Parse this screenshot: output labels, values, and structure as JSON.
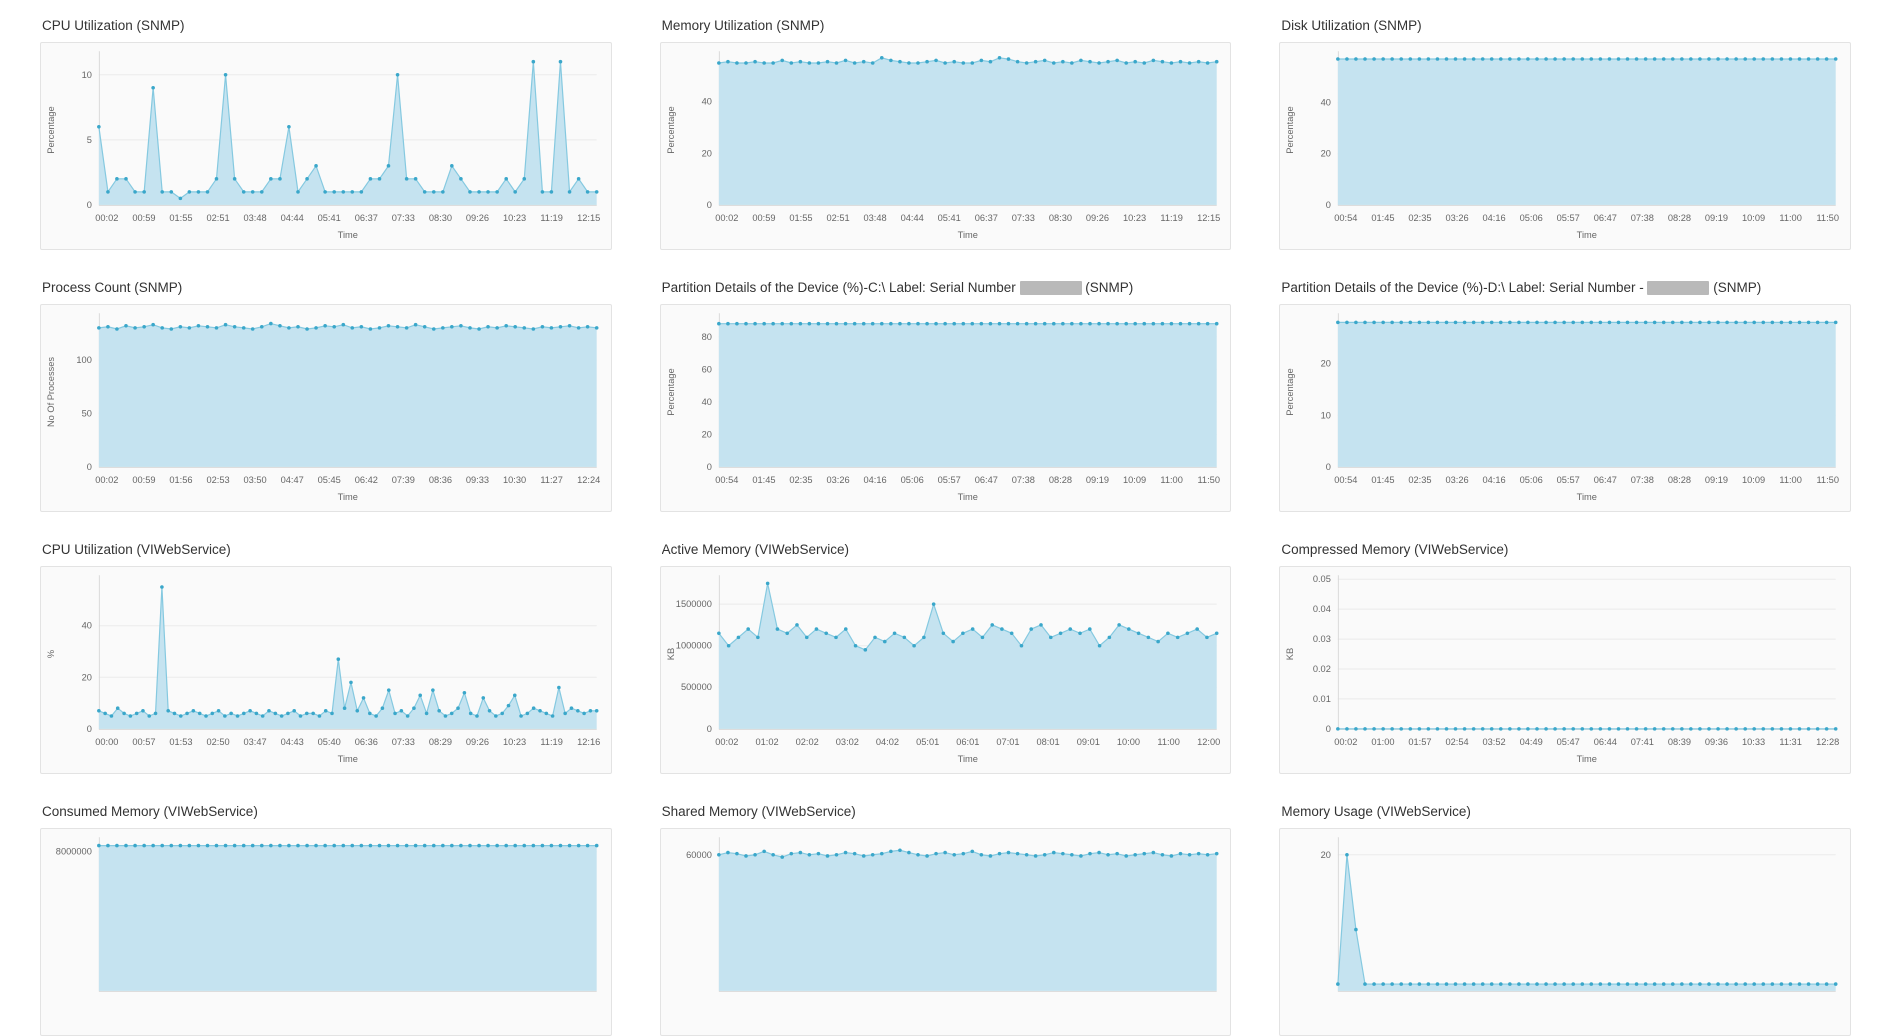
{
  "page": {
    "background": "#ffffff"
  },
  "colors": {
    "area_fill": "#c5e3f0",
    "line": "#85c9e0",
    "dot": "#3aa7ca",
    "grid": "#ebebeb",
    "axis": "#d9d9d9",
    "tick_text": "#666666",
    "title_text": "#333333",
    "panel_border": "#e3e3e3",
    "panel_bg": "#fafafa",
    "redaction": "#b9b9b9"
  },
  "chart_data": [
    {
      "type": "area",
      "title": "CPU Utilization (SNMP)",
      "ylabel": "Percentage",
      "xlabel": "Time",
      "yticks": [
        0,
        5,
        10
      ],
      "ymax": 11.5,
      "xticklabels": [
        "00:02",
        "00:59",
        "01:55",
        "02:51",
        "03:48",
        "04:44",
        "05:41",
        "06:37",
        "07:33",
        "08:30",
        "09:26",
        "10:23",
        "11:19",
        "12:15"
      ],
      "values": [
        6,
        1,
        2,
        2,
        1,
        1,
        9,
        1,
        1,
        0.5,
        1,
        1,
        1,
        2,
        10,
        2,
        1,
        1,
        1,
        2,
        2,
        6,
        1,
        2,
        3,
        1,
        1,
        1,
        1,
        1,
        2,
        2,
        3,
        10,
        2,
        2,
        1,
        1,
        1,
        3,
        2,
        1,
        1,
        1,
        1,
        2,
        1,
        2,
        11,
        1,
        1,
        11,
        1,
        2,
        1,
        1
      ]
    },
    {
      "type": "area",
      "title": "Memory Utilization (SNMP)",
      "ylabel": "Percentage",
      "xlabel": "Time",
      "yticks": [
        0,
        20,
        40
      ],
      "ymax": 58,
      "xticklabels": [
        "00:02",
        "00:59",
        "01:55",
        "02:51",
        "03:48",
        "04:44",
        "05:41",
        "06:37",
        "07:33",
        "08:30",
        "09:26",
        "10:23",
        "11:19",
        "12:15"
      ],
      "values": [
        55,
        55.5,
        55,
        55,
        55.5,
        55,
        55,
        56,
        55,
        55.5,
        55,
        55,
        55.5,
        55,
        56,
        55,
        55.5,
        55,
        57,
        56,
        55.5,
        55,
        55,
        55.5,
        56,
        55,
        55.5,
        55,
        55,
        56,
        55.5,
        57,
        56.5,
        55.5,
        55,
        55.5,
        56,
        55,
        55.5,
        55,
        56,
        55.5,
        55,
        55.5,
        56,
        55,
        55.5,
        55,
        56,
        55.5,
        55,
        55.5,
        55,
        55.5,
        55,
        55.5
      ]
    },
    {
      "type": "area",
      "title": "Disk Utilization (SNMP)",
      "ylabel": "Percentage",
      "xlabel": "Time",
      "yticks": [
        0,
        20,
        40
      ],
      "ymax": 58.5,
      "xticklabels": [
        "00:54",
        "01:45",
        "02:35",
        "03:26",
        "04:16",
        "05:06",
        "05:57",
        "06:47",
        "07:38",
        "08:28",
        "09:19",
        "10:09",
        "11:00",
        "11:50"
      ],
      "values": [
        57,
        57,
        57,
        57,
        57,
        57,
        57,
        57,
        57,
        57,
        57,
        57,
        57,
        57,
        57,
        57,
        57,
        57,
        57,
        57,
        57,
        57,
        57,
        57,
        57,
        57,
        57,
        57,
        57,
        57,
        57,
        57,
        57,
        57,
        57,
        57,
        57,
        57,
        57,
        57,
        57,
        57,
        57,
        57,
        57,
        57,
        57,
        57,
        57,
        57,
        57,
        57,
        57,
        57,
        57,
        57
      ]
    },
    {
      "type": "area",
      "title": "Process Count (SNMP)",
      "ylabel": "No Of Processes",
      "xlabel": "Time",
      "yticks": [
        0,
        50,
        100
      ],
      "ymax": 140,
      "xticklabels": [
        "00:02",
        "00:59",
        "01:56",
        "02:53",
        "03:50",
        "04:47",
        "05:45",
        "06:42",
        "07:39",
        "08:36",
        "09:33",
        "10:30",
        "11:27",
        "12:24"
      ],
      "values": [
        130,
        131,
        129,
        132,
        130,
        131,
        133,
        130,
        129,
        131,
        130,
        132,
        131,
        130,
        133,
        131,
        130,
        129,
        131,
        134,
        132,
        130,
        131,
        129,
        130,
        132,
        131,
        133,
        130,
        131,
        129,
        130,
        132,
        131,
        130,
        133,
        131,
        129,
        130,
        131,
        132,
        130,
        129,
        131,
        130,
        132,
        131,
        130,
        129,
        131,
        130,
        131,
        132,
        130,
        131,
        130
      ]
    },
    {
      "type": "area",
      "title_prefix": "Partition Details of the Device (%)-C:\\ Label: Serial Number",
      "title_redacted": true,
      "title_suffix": "(SNMP)",
      "ylabel": "Percentage",
      "xlabel": "Time",
      "yticks": [
        0,
        20,
        40,
        60,
        80
      ],
      "ymax": 92,
      "xticklabels": [
        "00:54",
        "01:45",
        "02:35",
        "03:26",
        "04:16",
        "05:06",
        "05:57",
        "06:47",
        "07:38",
        "08:28",
        "09:19",
        "10:09",
        "11:00",
        "11:50"
      ],
      "values": [
        88,
        88,
        88,
        88,
        88,
        88,
        88,
        88,
        88,
        88,
        88,
        88,
        88,
        88,
        88,
        88,
        88,
        88,
        88,
        88,
        88,
        88,
        88,
        88,
        88,
        88,
        88,
        88,
        88,
        88,
        88,
        88,
        88,
        88,
        88,
        88,
        88,
        88,
        88,
        88,
        88,
        88,
        88,
        88,
        88,
        88,
        88,
        88,
        88,
        88,
        88,
        88,
        88,
        88,
        88,
        88
      ]
    },
    {
      "type": "area",
      "title_prefix": "Partition Details of the Device (%)-D:\\ Label: Serial Number -",
      "title_redacted": true,
      "title_suffix": "(SNMP)",
      "ylabel": "Percentage",
      "xlabel": "Time",
      "yticks": [
        0,
        10,
        20
      ],
      "ymax": 29,
      "xticklabels": [
        "00:54",
        "01:45",
        "02:35",
        "03:26",
        "04:16",
        "05:06",
        "05:57",
        "06:47",
        "07:38",
        "08:28",
        "09:19",
        "10:09",
        "11:00",
        "11:50"
      ],
      "values": [
        28,
        28,
        28,
        28,
        28,
        28,
        28,
        28,
        28,
        28,
        28,
        28,
        28,
        28,
        28,
        28,
        28,
        28,
        28,
        28,
        28,
        28,
        28,
        28,
        28,
        28,
        28,
        28,
        28,
        28,
        28,
        28,
        28,
        28,
        28,
        28,
        28,
        28,
        28,
        28,
        28,
        28,
        28,
        28,
        28,
        28,
        28,
        28,
        28,
        28,
        28,
        28,
        28,
        28,
        28,
        28
      ]
    },
    {
      "type": "area",
      "title": "CPU Utilization (VIWebService)",
      "ylabel": "%",
      "xlabel": "Time",
      "yticks": [
        0,
        20,
        40
      ],
      "ymax": 58,
      "xticklabels": [
        "00:00",
        "00:57",
        "01:53",
        "02:50",
        "03:47",
        "04:43",
        "05:40",
        "06:36",
        "07:33",
        "08:29",
        "09:26",
        "10:23",
        "11:19",
        "12:16"
      ],
      "values": [
        7,
        6,
        5,
        8,
        6,
        5,
        6,
        7,
        5,
        6,
        55,
        7,
        6,
        5,
        6,
        7,
        6,
        5,
        6,
        7,
        5,
        6,
        5,
        6,
        7,
        6,
        5,
        7,
        6,
        5,
        6,
        7,
        5,
        6,
        6,
        5,
        7,
        6,
        27,
        8,
        18,
        7,
        12,
        6,
        5,
        8,
        15,
        6,
        7,
        5,
        8,
        13,
        6,
        15,
        7,
        5,
        6,
        8,
        14,
        6,
        5,
        12,
        7,
        5,
        6,
        9,
        13,
        5,
        6,
        8,
        7,
        6,
        5,
        16,
        6,
        8,
        7,
        6,
        7,
        7
      ]
    },
    {
      "type": "area",
      "title": "Active Memory (VIWebService)",
      "ylabel": "KB",
      "xlabel": "Time",
      "yticks": [
        0,
        500000,
        1000000,
        1500000
      ],
      "ymax": 1800000,
      "xticklabels": [
        "00:02",
        "01:02",
        "02:02",
        "03:02",
        "04:02",
        "05:01",
        "06:01",
        "07:01",
        "08:01",
        "09:01",
        "10:00",
        "11:00",
        "12:00"
      ],
      "values": [
        1150000,
        1000000,
        1100000,
        1200000,
        1100000,
        1750000,
        1200000,
        1150000,
        1250000,
        1100000,
        1200000,
        1150000,
        1100000,
        1200000,
        1000000,
        950000,
        1100000,
        1050000,
        1150000,
        1100000,
        1000000,
        1100000,
        1500000,
        1150000,
        1050000,
        1150000,
        1200000,
        1100000,
        1250000,
        1200000,
        1150000,
        1000000,
        1200000,
        1250000,
        1100000,
        1150000,
        1200000,
        1150000,
        1200000,
        1000000,
        1100000,
        1250000,
        1200000,
        1150000,
        1100000,
        1050000,
        1150000,
        1100000,
        1150000,
        1200000,
        1100000,
        1150000
      ]
    },
    {
      "type": "area",
      "title": "Compressed Memory (VIWebService)",
      "ylabel": "KB",
      "xlabel": "Time",
      "yticks": [
        0,
        0.01,
        0.02,
        0.03,
        0.04,
        0.05
      ],
      "ymax": 0.05,
      "xticklabels": [
        "00:02",
        "01:00",
        "01:57",
        "02:54",
        "03:52",
        "04:49",
        "05:47",
        "06:44",
        "07:41",
        "08:39",
        "09:36",
        "10:33",
        "11:31",
        "12:28"
      ],
      "values": [
        0,
        0,
        0,
        0,
        0,
        0,
        0,
        0,
        0,
        0,
        0,
        0,
        0,
        0,
        0,
        0,
        0,
        0,
        0,
        0,
        0,
        0,
        0,
        0,
        0,
        0,
        0,
        0,
        0,
        0,
        0,
        0,
        0,
        0,
        0,
        0,
        0,
        0,
        0,
        0,
        0,
        0,
        0,
        0,
        0,
        0,
        0,
        0,
        0,
        0,
        0,
        0,
        0,
        0,
        0,
        0
      ]
    },
    {
      "type": "area",
      "title": "Consumed Memory (VIWebService)",
      "ylabel": "",
      "xlabel": "",
      "yticks": [
        8000000
      ],
      "ymax": 8600000,
      "xticklabels": [],
      "values": [
        8350000,
        8350000,
        8350000,
        8350000,
        8350000,
        8350000,
        8350000,
        8350000,
        8350000,
        8350000,
        8350000,
        8350000,
        8350000,
        8350000,
        8350000,
        8350000,
        8350000,
        8350000,
        8350000,
        8350000,
        8350000,
        8350000,
        8350000,
        8350000,
        8350000,
        8350000,
        8350000,
        8350000,
        8350000,
        8350000,
        8350000,
        8350000,
        8350000,
        8350000,
        8350000,
        8350000,
        8350000,
        8350000,
        8350000,
        8350000,
        8350000,
        8350000,
        8350000,
        8350000,
        8350000,
        8350000,
        8350000,
        8350000,
        8350000,
        8350000,
        8350000,
        8350000,
        8350000,
        8350000,
        8350000,
        8350000
      ]
    },
    {
      "type": "area",
      "title": "Shared Memory (VIWebService)",
      "ylabel": "",
      "xlabel": "",
      "yticks": [
        60000
      ],
      "ymax": 66000,
      "xticklabels": [],
      "values": [
        60000,
        61000,
        60500,
        59500,
        60000,
        61500,
        60000,
        59000,
        60500,
        61000,
        60000,
        60500,
        59500,
        60000,
        61000,
        60500,
        59500,
        60000,
        60500,
        61500,
        62000,
        61000,
        60000,
        59500,
        60500,
        61000,
        60000,
        60500,
        61500,
        60000,
        59500,
        60500,
        61000,
        60500,
        60000,
        59500,
        60000,
        61000,
        60500,
        60000,
        59500,
        60500,
        61000,
        60000,
        60500,
        59500,
        60000,
        60500,
        61000,
        60000,
        59500,
        60500,
        60000,
        60500,
        60000,
        60500
      ]
    },
    {
      "type": "area",
      "title": "Memory Usage (VIWebService)",
      "ylabel": "",
      "xlabel": "",
      "yticks": [
        20
      ],
      "ymax": 22,
      "xticklabels": [],
      "values": [
        1,
        20,
        9,
        1,
        1,
        1,
        1,
        1,
        1,
        1,
        1,
        1,
        1,
        1,
        1,
        1,
        1,
        1,
        1,
        1,
        1,
        1,
        1,
        1,
        1,
        1,
        1,
        1,
        1,
        1,
        1,
        1,
        1,
        1,
        1,
        1,
        1,
        1,
        1,
        1,
        1,
        1,
        1,
        1,
        1,
        1,
        1,
        1,
        1,
        1,
        1,
        1,
        1,
        1,
        1,
        1
      ]
    }
  ]
}
